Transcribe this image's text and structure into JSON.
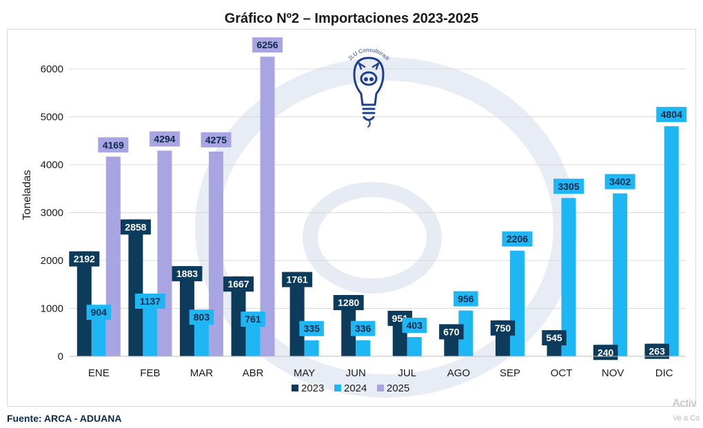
{
  "chart_data": {
    "type": "bar",
    "title": "Gráfico Nº2 – Importaciones 2023-2025",
    "ylabel": "Toneladas",
    "xlabel": "",
    "ylim": [
      0,
      6000
    ],
    "yticks": [
      "0",
      "1000",
      "2000",
      "3000",
      "4000",
      "5000",
      "6000"
    ],
    "grid": true,
    "legend_position": "bottom",
    "categories": [
      "ENE",
      "FEB",
      "MAR",
      "ABR",
      "MAY",
      "JUN",
      "JUL",
      "AGO",
      "SEP",
      "OCT",
      "NOV",
      "DIC"
    ],
    "series": [
      {
        "name": "2023",
        "color": "#0d3b5c",
        "label_color": "#ffffff",
        "values": [
          2192,
          2858,
          1883,
          1667,
          1761,
          1280,
          951,
          670,
          750,
          545,
          240,
          263
        ],
        "labels": [
          "2192",
          "2858",
          "1883",
          "1667",
          "1761",
          "1280",
          "951",
          "670",
          "750",
          "545",
          "240",
          "263"
        ]
      },
      {
        "name": "2024",
        "color": "#1fb6f4",
        "label_color": "#0b2a4a",
        "values": [
          904,
          1137,
          803,
          761,
          335,
          336,
          403,
          956,
          2206,
          3305,
          3402,
          4804
        ],
        "labels": [
          "904",
          "1137",
          "803",
          "761",
          "335",
          "336",
          "403",
          "956",
          "2206",
          "3305",
          "3402",
          "4804"
        ]
      },
      {
        "name": "2025",
        "color": "#a8a5e2",
        "label_color": "#0b2a4a",
        "values": [
          4169,
          4294,
          4275,
          6256,
          null,
          null,
          null,
          null,
          null,
          null,
          null,
          null
        ],
        "labels": [
          "4169",
          "4294",
          "4275",
          "6256",
          "",
          "",
          "",
          "",
          "",
          "",
          "",
          ""
        ]
      }
    ]
  },
  "logo": {
    "text": "JLU Consultora®",
    "icon": "pig-lightbulb-icon"
  },
  "footer": {
    "source": "Fuente: ARCA - ADUANA"
  },
  "overlay": {
    "line1": "Activ",
    "line2": "Ve a Co"
  }
}
